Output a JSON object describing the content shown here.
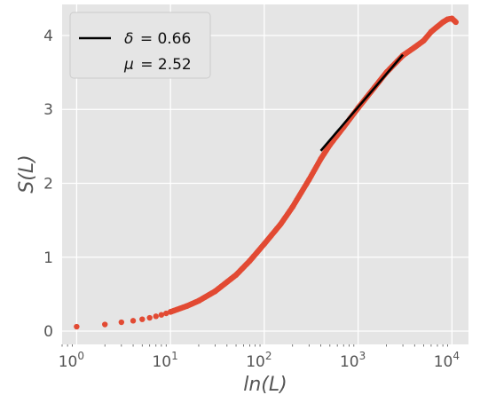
{
  "chart_data": {
    "type": "scatter",
    "title": "",
    "xlabel": "ln(L)",
    "ylabel": "S(L)",
    "x_scale": "log",
    "xlim": [
      0.7,
      15000
    ],
    "ylim": [
      -0.18,
      4.42
    ],
    "x_ticks": [
      1,
      10,
      100,
      1000,
      10000
    ],
    "x_tick_labels": [
      {
        "base": "10",
        "exp": "0"
      },
      {
        "base": "10",
        "exp": "1"
      },
      {
        "base": "10",
        "exp": "2"
      },
      {
        "base": "10",
        "exp": "3"
      },
      {
        "base": "10",
        "exp": "4"
      }
    ],
    "y_ticks": [
      0,
      1,
      2,
      3,
      4
    ],
    "y_tick_labels": [
      "0",
      "1",
      "2",
      "3",
      "4"
    ],
    "grid": true,
    "background": "#e5e5e5",
    "legend": {
      "placement": "top-left",
      "entries": [
        {
          "symbol": "δ",
          "eq": "= 0.66",
          "line": true
        },
        {
          "symbol": "μ",
          "eq": "= 2.52",
          "line": false
        }
      ]
    },
    "series": [
      {
        "kind": "scatter",
        "color": "#e24a33",
        "points": [
          [
            1,
            0.06
          ],
          [
            2,
            0.09
          ],
          [
            3,
            0.12
          ],
          [
            4,
            0.14
          ],
          [
            5,
            0.16
          ],
          [
            6,
            0.18
          ],
          [
            7,
            0.2
          ],
          [
            8,
            0.22
          ],
          [
            9,
            0.24
          ],
          [
            10,
            0.26
          ],
          [
            15,
            0.34
          ],
          [
            20,
            0.41
          ],
          [
            30,
            0.54
          ],
          [
            50,
            0.76
          ],
          [
            70,
            0.95
          ],
          [
            100,
            1.18
          ],
          [
            150,
            1.45
          ],
          [
            200,
            1.68
          ],
          [
            300,
            2.05
          ],
          [
            400,
            2.33
          ],
          [
            500,
            2.52
          ],
          [
            700,
            2.76
          ],
          [
            1000,
            3.02
          ],
          [
            1500,
            3.3
          ],
          [
            2000,
            3.5
          ],
          [
            3000,
            3.73
          ],
          [
            4000,
            3.84
          ],
          [
            5000,
            3.93
          ],
          [
            6000,
            4.05
          ],
          [
            7000,
            4.12
          ],
          [
            8000,
            4.18
          ],
          [
            9000,
            4.22
          ],
          [
            10000,
            4.23
          ],
          [
            11000,
            4.18
          ]
        ]
      },
      {
        "kind": "line",
        "name": "δ = 0.66",
        "color": "#000000",
        "points": [
          [
            400,
            2.44
          ],
          [
            3000,
            3.74
          ]
        ]
      }
    ]
  }
}
